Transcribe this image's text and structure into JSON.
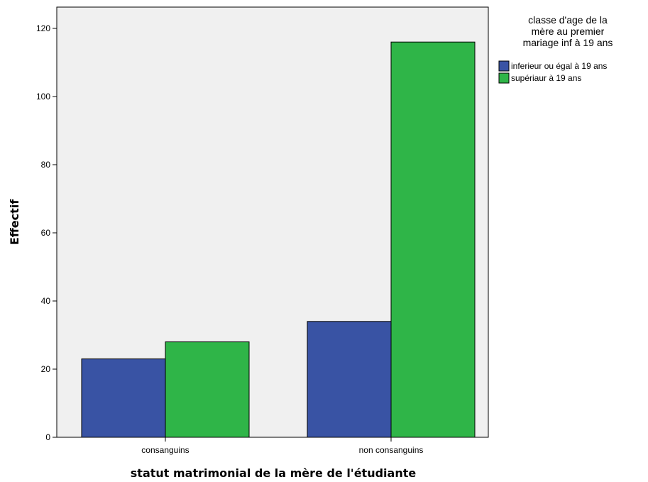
{
  "chart_data": {
    "type": "bar",
    "categories": [
      "consanguins",
      "non consanguins"
    ],
    "series": [
      {
        "name": "inferieur ou égal à 19 ans",
        "color": "#3953a4",
        "values": [
          23,
          34
        ]
      },
      {
        "name": "supériaur à 19 ans",
        "color": "#2fb548",
        "values": [
          28,
          116
        ]
      }
    ],
    "xlabel": "statut matrimonial de la mère de l'étudiante",
    "ylabel": "Effectif",
    "ylim": [
      0,
      120
    ],
    "yticks": [
      0,
      20,
      40,
      60,
      80,
      100,
      120
    ],
    "legend": {
      "title_lines": [
        "classe d'age de la",
        "mère au premier",
        "mariage inf à 19 ans"
      ],
      "placement": "right"
    },
    "plot_background": "#f0f0f0",
    "grid": false
  }
}
